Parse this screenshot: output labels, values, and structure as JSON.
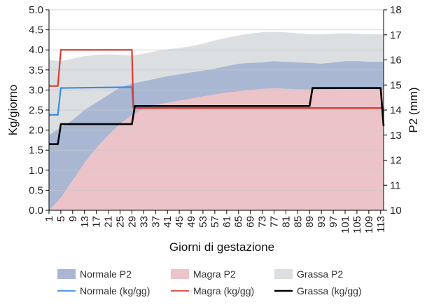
{
  "chart_data": {
    "type": "area",
    "xlabel": "Giorni di gestazione",
    "ylabel_left": "Kg/giorno",
    "ylabel_right": "P2 (mm)",
    "x_tick_labels": [
      "1",
      "5",
      "9",
      "13",
      "17",
      "21",
      "25",
      "29",
      "33",
      "37",
      "41",
      "45",
      "49",
      "53",
      "57",
      "61",
      "65",
      "69",
      "73",
      "77",
      "81",
      "85",
      "89",
      "93",
      "97",
      "101",
      "105",
      "109",
      "113"
    ],
    "xlim": [
      1,
      114
    ],
    "ylim_left": [
      0,
      5
    ],
    "ylim_right": [
      10,
      18
    ],
    "y_ticks_left": [
      "0.0",
      "0.5",
      "1.0",
      "1.5",
      "2.0",
      "2.5",
      "3.0",
      "3.5",
      "4.0",
      "4.5",
      "5.0"
    ],
    "y_ticks_right": [
      "10",
      "11",
      "12",
      "13",
      "14",
      "15",
      "16",
      "17",
      "18"
    ],
    "grid": "horizontal",
    "area_series": [
      {
        "name": "Grassa P2",
        "axis": "right",
        "color": "#dcdfe1",
        "x": [
          1,
          5,
          9,
          13,
          17,
          21,
          25,
          29,
          33,
          37,
          41,
          45,
          49,
          53,
          57,
          61,
          65,
          69,
          73,
          77,
          81,
          85,
          89,
          93,
          97,
          101,
          105,
          109,
          113,
          114
        ],
        "y": [
          16.0,
          15.95,
          16.05,
          16.15,
          16.2,
          16.22,
          16.2,
          16.18,
          16.25,
          16.35,
          16.42,
          16.48,
          16.55,
          16.65,
          16.78,
          16.88,
          16.98,
          17.05,
          17.1,
          17.12,
          17.1,
          17.06,
          17.03,
          17.02,
          17.05,
          17.06,
          17.05,
          17.03,
          17.02,
          17.0
        ]
      },
      {
        "name": "Normale P2",
        "axis": "right",
        "color": "#a9b7d3",
        "x": [
          1,
          5,
          9,
          13,
          17,
          21,
          25,
          29,
          33,
          37,
          41,
          45,
          49,
          53,
          57,
          61,
          65,
          69,
          73,
          77,
          81,
          85,
          89,
          93,
          97,
          101,
          105,
          109,
          113,
          114
        ],
        "y": [
          13.0,
          13.3,
          13.6,
          14.0,
          14.3,
          14.6,
          14.9,
          15.05,
          15.15,
          15.25,
          15.35,
          15.42,
          15.5,
          15.57,
          15.65,
          15.75,
          15.85,
          15.88,
          15.9,
          15.95,
          15.92,
          15.9,
          15.88,
          15.85,
          15.9,
          15.95,
          15.95,
          15.93,
          15.92,
          15.92
        ]
      },
      {
        "name": "Magra P2",
        "axis": "right",
        "color": "#ecc3c8",
        "x": [
          1,
          5,
          9,
          13,
          17,
          21,
          25,
          29,
          33,
          37,
          41,
          45,
          49,
          53,
          57,
          61,
          65,
          69,
          73,
          77,
          81,
          85,
          89,
          93,
          97,
          101,
          105,
          109,
          113,
          114
        ],
        "y": [
          10.0,
          10.5,
          11.2,
          11.9,
          12.5,
          13.0,
          13.45,
          13.8,
          14.05,
          14.2,
          14.3,
          14.38,
          14.46,
          14.55,
          14.63,
          14.7,
          14.75,
          14.8,
          14.85,
          14.87,
          14.85,
          14.83,
          14.82,
          14.82,
          14.83,
          14.84,
          14.85,
          14.84,
          14.82,
          14.82
        ]
      }
    ],
    "line_series": [
      {
        "name": "Normale (kg/gg)",
        "axis": "left",
        "color": "#3b8bdc",
        "x": [
          1,
          4,
          5,
          28,
          29,
          29.5,
          114
        ],
        "y": [
          2.38,
          2.38,
          3.05,
          3.07,
          3.07,
          2.55,
          2.55
        ]
      },
      {
        "name": "Magra (kg/gg)",
        "axis": "left",
        "color": "#e03a32",
        "x": [
          1,
          4,
          5,
          28,
          29,
          29.5,
          114
        ],
        "y": [
          3.1,
          3.1,
          4.0,
          4.0,
          4.0,
          2.55,
          2.55
        ]
      },
      {
        "name": "Grassa (kg/gg)",
        "axis": "left",
        "color": "#000000",
        "x": [
          1,
          4,
          5,
          29,
          30,
          89,
          90,
          113,
          114
        ],
        "y": [
          1.65,
          1.65,
          2.15,
          2.15,
          2.6,
          2.6,
          3.05,
          3.05,
          2.1
        ]
      }
    ],
    "legend": {
      "placement": "bottom",
      "items": [
        {
          "label": "Normale P2",
          "kind": "area",
          "color": "#a9b7d3"
        },
        {
          "label": "Magra P2",
          "kind": "area",
          "color": "#ecc3c8"
        },
        {
          "label": "Grassa P2",
          "kind": "area",
          "color": "#dcdfe1"
        },
        {
          "label": "Normale (kg/gg)",
          "kind": "line",
          "color": "#3b8bdc"
        },
        {
          "label": "Magra (kg/gg)",
          "kind": "line",
          "color": "#e03a32"
        },
        {
          "label": "Grassa (kg/gg)",
          "kind": "line",
          "color": "#000000"
        }
      ]
    }
  }
}
